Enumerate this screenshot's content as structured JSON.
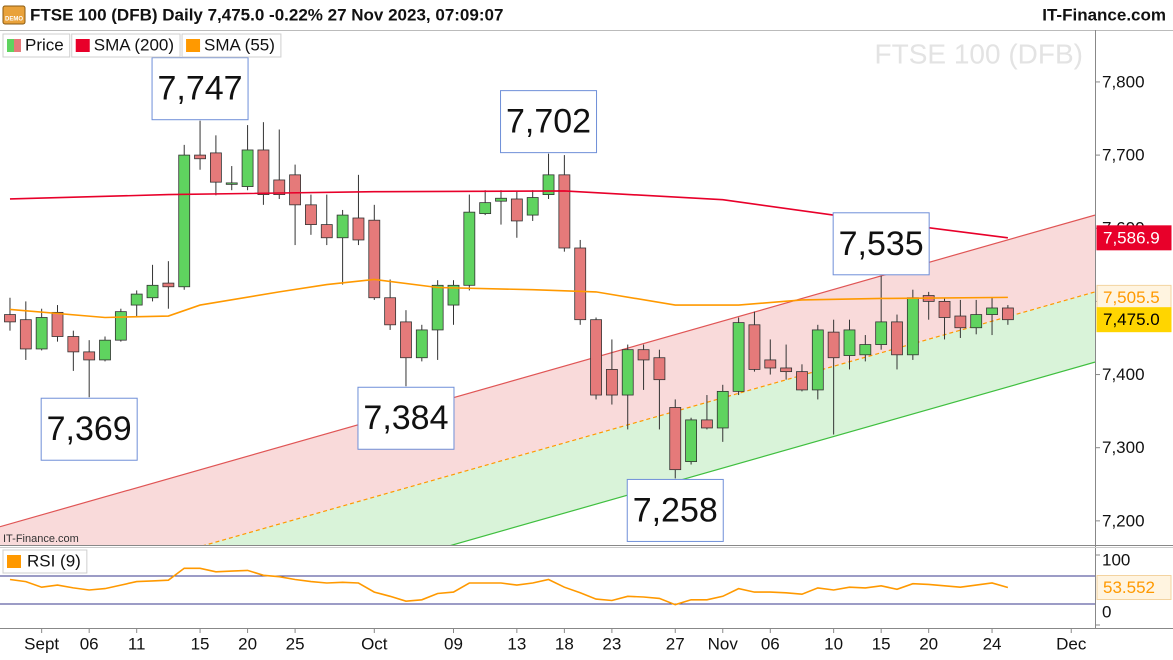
{
  "header": {
    "title": "FTSE 100 (DFB) Daily 7,475.0 -0.22% 27 Nov 2023, 07:09:07",
    "brand": "IT-Finance.com",
    "demo": "DEMO"
  },
  "watermark": "FTSE 100 (DFB)",
  "source": "IT-Finance.com",
  "chart_data": [
    {
      "type": "candlestick",
      "name": "Price",
      "up_color": "#5fd35f",
      "down_color": "#e57a7a",
      "xlim": [
        -0.63,
        68.5
      ],
      "ylim": [
        7167,
        7871
      ],
      "yticks": [
        {
          "value": 7200,
          "label": "7,200"
        },
        {
          "value": 7300,
          "label": "7,300"
        },
        {
          "value": 7400,
          "label": "7,400"
        },
        {
          "value": 7500,
          "label": "7,500"
        },
        {
          "value": 7600,
          "label": "7,600"
        },
        {
          "value": 7700,
          "label": "7,700"
        },
        {
          "value": 7800,
          "label": "7,800"
        }
      ],
      "open": [
        7482,
        7475,
        7435,
        7485,
        7452,
        7431,
        7420,
        7447,
        7495,
        7505,
        7525,
        7520,
        7700,
        7703,
        7660,
        7657,
        7707,
        7666,
        7673,
        7632,
        7605,
        7587,
        7614,
        7611,
        7505,
        7472,
        7423,
        7461,
        7495,
        7522,
        7620,
        7637,
        7640,
        7618,
        7646,
        7673,
        7573,
        7475,
        7407,
        7372,
        7434,
        7423,
        7355,
        7281,
        7338,
        7327,
        7377,
        7468,
        7420,
        7409,
        7404,
        7379,
        7458,
        7426,
        7427,
        7441,
        7472,
        7427,
        7508,
        7500,
        7480,
        7464,
        7482,
        7491
      ],
      "high": [
        7505,
        7500,
        7490,
        7495,
        7460,
        7447,
        7452,
        7490,
        7515,
        7550,
        7555,
        7714,
        7747,
        7727,
        7685,
        7741,
        7745,
        7735,
        7687,
        7646,
        7646,
        7625,
        7673,
        7632,
        7530,
        7488,
        7468,
        7529,
        7529,
        7646,
        7652,
        7652,
        7650,
        7652,
        7702,
        7700,
        7584,
        7478,
        7448,
        7441,
        7441,
        7434,
        7366,
        7341,
        7372,
        7386,
        7478,
        7486,
        7448,
        7441,
        7414,
        7468,
        7475,
        7475,
        7454,
        7535,
        7482,
        7516,
        7513,
        7505,
        7502,
        7502,
        7505,
        7495
      ],
      "low": [
        7460,
        7420,
        7433,
        7445,
        7405,
        7369,
        7418,
        7445,
        7478,
        7500,
        7490,
        7516,
        7680,
        7645,
        7652,
        7652,
        7632,
        7640,
        7577,
        7591,
        7577,
        7523,
        7577,
        7502,
        7461,
        7384,
        7418,
        7420,
        7468,
        7515,
        7618,
        7605,
        7587,
        7610,
        7640,
        7568,
        7468,
        7366,
        7359,
        7325,
        7379,
        7325,
        7258,
        7277,
        7325,
        7308,
        7372,
        7404,
        7400,
        7393,
        7377,
        7366,
        7318,
        7407,
        7418,
        7434,
        7407,
        7420,
        7475,
        7448,
        7450,
        7455,
        7454,
        7468
      ],
      "close": [
        7472,
        7435,
        7478,
        7452,
        7431,
        7420,
        7447,
        7486,
        7510,
        7522,
        7520,
        7700,
        7695,
        7663,
        7662,
        7707,
        7646,
        7646,
        7632,
        7605,
        7587,
        7618,
        7584,
        7505,
        7468,
        7423,
        7461,
        7522,
        7522,
        7622,
        7635,
        7641,
        7610,
        7642,
        7673,
        7573,
        7475,
        7372,
        7372,
        7434,
        7420,
        7393,
        7270,
        7338,
        7327,
        7377,
        7471,
        7407,
        7409,
        7404,
        7379,
        7461,
        7423,
        7461,
        7441,
        7472,
        7427,
        7505,
        7500,
        7478,
        7464,
        7482,
        7491,
        7475
      ],
      "close_label": "7,475.0",
      "close_label_fill": "#ffd500",
      "close_label_text": "#000000",
      "series": [
        {
          "name": "SMA (200)",
          "color": "#e8002a",
          "x": [
            0,
            10,
            23,
            35,
            45,
            55,
            63
          ],
          "values": [
            7640,
            7646,
            7650,
            7651,
            7639,
            7609,
            7586.9
          ],
          "last_label": "7,586.9",
          "label_fill": "#e8002a",
          "label_text": "#ffffff"
        },
        {
          "name": "SMA (55)",
          "color": "#ff9900",
          "x": [
            0,
            6,
            10,
            12,
            17,
            20,
            23,
            27,
            33,
            37,
            42,
            46,
            50,
            55,
            63
          ],
          "values": [
            7489,
            7478,
            7480,
            7495,
            7513,
            7523,
            7530,
            7519,
            7516,
            7513,
            7495,
            7495,
            7502,
            7504,
            7505.5
          ],
          "last_label": "7,505.5",
          "label_fill": "#fff4e0",
          "label_text": "#ff9900"
        }
      ],
      "channel": {
        "x": [
          -0.63,
          68.5
        ],
        "upper": [
          7192,
          7618
        ],
        "middle": [
          7087,
          7513
        ],
        "lower": [
          6991,
          7417
        ],
        "upper_color": "#e05555",
        "middle_color": "#ff9900",
        "lower_color": "#3fbf3f",
        "upper_fill": "#f9dada",
        "lower_fill": "#d9f3d9"
      },
      "annotations": [
        {
          "x": 12,
          "value": 7747,
          "label": "7,747",
          "position": "above"
        },
        {
          "x": 34,
          "value": 7702,
          "label": "7,702",
          "position": "above"
        },
        {
          "x": 55,
          "value": 7535,
          "label": "7,535",
          "position": "above"
        },
        {
          "x": 5,
          "value": 7369,
          "label": "7,369",
          "position": "below"
        },
        {
          "x": 25,
          "value": 7384,
          "label": "7,384",
          "position": "below"
        },
        {
          "x": 42,
          "value": 7258,
          "label": "7,258",
          "position": "below"
        }
      ]
    },
    {
      "type": "line",
      "xlim": [
        -0.63,
        68.5
      ],
      "ylim": [
        -4.3,
        110
      ],
      "yticks": [
        0,
        100
      ],
      "levels": [
        70,
        30
      ],
      "level_color": "#3a3a8c",
      "series": [
        {
          "name": "RSI (9)",
          "color": "#ff9900",
          "values": [
            65,
            62,
            54,
            57,
            53,
            50,
            52,
            57,
            62,
            63,
            64,
            81,
            81,
            76,
            77,
            78,
            71,
            69,
            65,
            62,
            60,
            61,
            60,
            47,
            41,
            34,
            36,
            45,
            47,
            60,
            60,
            60,
            57,
            60,
            65,
            54,
            46,
            37,
            35,
            41,
            40,
            38,
            29,
            36,
            36,
            41,
            52,
            47,
            47,
            46,
            44,
            53,
            50,
            54,
            53,
            56,
            51,
            59,
            58,
            56,
            54,
            57,
            60,
            53.552
          ],
          "last_label": "53.552",
          "label_fill": "#fff4e0",
          "label_text": "#ff9900"
        }
      ],
      "xticks": [
        {
          "value": 2,
          "label": "Sept"
        },
        {
          "value": 5,
          "label": "06"
        },
        {
          "value": 8,
          "label": "11"
        },
        {
          "value": 12,
          "label": "15"
        },
        {
          "value": 15,
          "label": "20"
        },
        {
          "value": 18,
          "label": "25"
        },
        {
          "value": 23,
          "label": "Oct"
        },
        {
          "value": 28,
          "label": "09"
        },
        {
          "value": 32,
          "label": "13"
        },
        {
          "value": 35,
          "label": "18"
        },
        {
          "value": 38,
          "label": "23"
        },
        {
          "value": 42,
          "label": "27"
        },
        {
          "value": 45,
          "label": "Nov"
        },
        {
          "value": 48,
          "label": "06"
        },
        {
          "value": 52,
          "label": "10"
        },
        {
          "value": 55,
          "label": "15"
        },
        {
          "value": 58,
          "label": "20"
        },
        {
          "value": 62,
          "label": "24"
        },
        {
          "value": 67,
          "label": "Dec"
        }
      ]
    }
  ]
}
